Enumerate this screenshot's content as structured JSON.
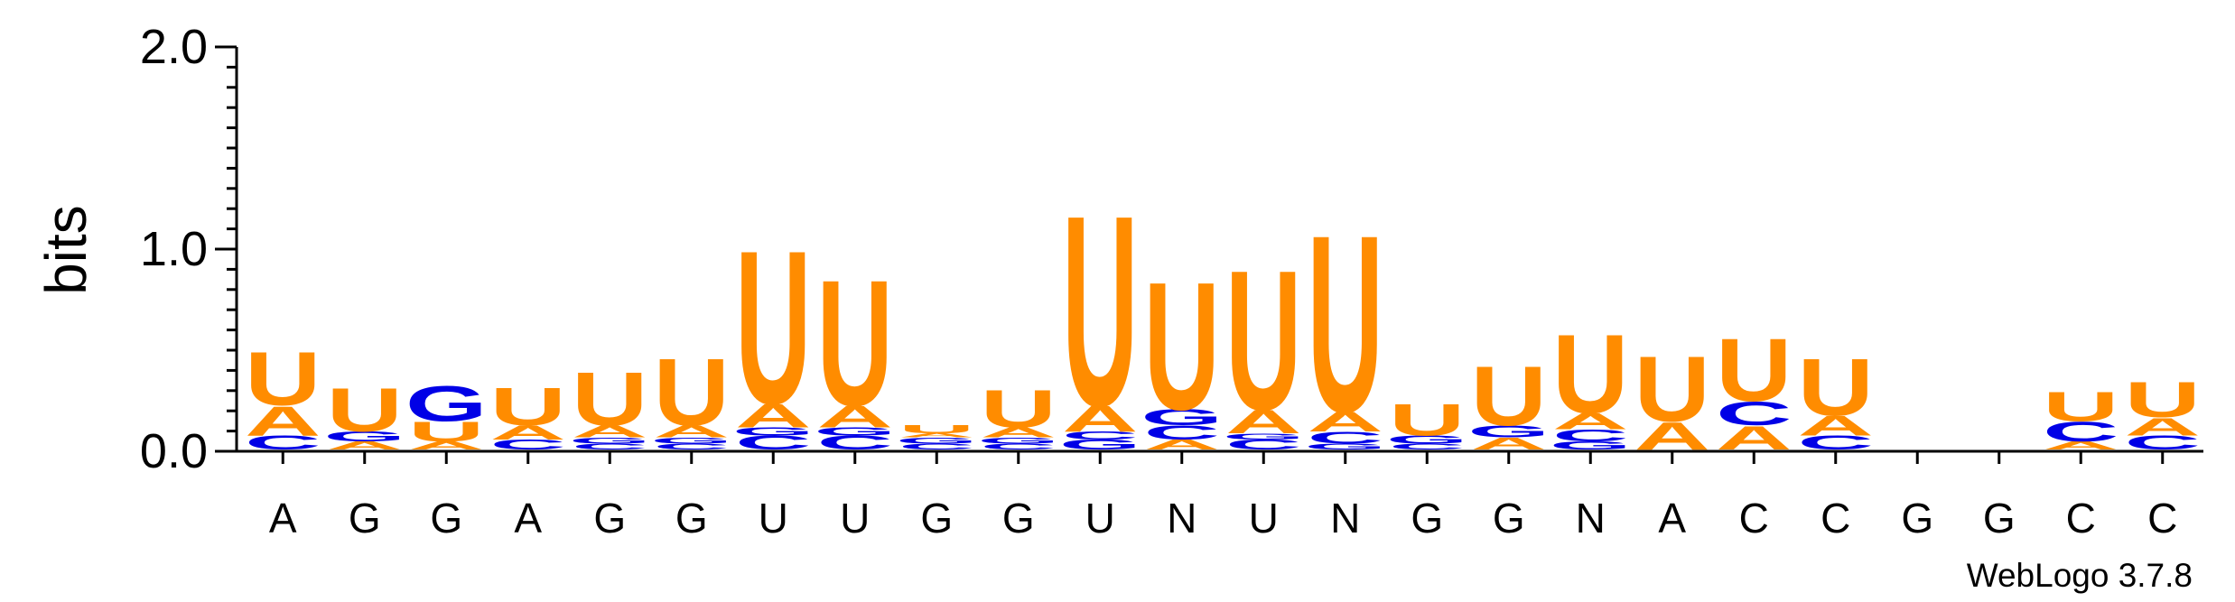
{
  "chart_data": {
    "type": "sequence-logo",
    "ylabel": "bits",
    "ylim": [
      0,
      2.0
    ],
    "yticks": [
      "0.0",
      "1.0",
      "2.0"
    ],
    "credit": "WebLogo 3.7.8",
    "colors": {
      "U": "#ff8c00",
      "A": "#ff8c00",
      "G": "#0000e6",
      "C": "#0000e6"
    },
    "positions": [
      {
        "label": "A",
        "stack": [
          [
            "C",
            0.07
          ],
          [
            "A",
            0.15
          ],
          [
            "U",
            0.27
          ]
        ]
      },
      {
        "label": "G",
        "stack": [
          [
            "A",
            0.04
          ],
          [
            "G",
            0.05
          ],
          [
            "U",
            0.22
          ]
        ]
      },
      {
        "label": "G",
        "stack": [
          [
            "A",
            0.04
          ],
          [
            "U",
            0.1
          ],
          [
            "G",
            0.18
          ]
        ]
      },
      {
        "label": "A",
        "stack": [
          [
            "C",
            0.05
          ],
          [
            "A",
            0.07
          ],
          [
            "U",
            0.19
          ]
        ]
      },
      {
        "label": "G",
        "stack": [
          [
            "C",
            0.03
          ],
          [
            "G",
            0.03
          ],
          [
            "A",
            0.06
          ],
          [
            "U",
            0.27
          ]
        ]
      },
      {
        "label": "G",
        "stack": [
          [
            "C",
            0.03
          ],
          [
            "G",
            0.03
          ],
          [
            "A",
            0.06
          ],
          [
            "U",
            0.34
          ]
        ]
      },
      {
        "label": "U",
        "stack": [
          [
            "C",
            0.07
          ],
          [
            "G",
            0.04
          ],
          [
            "A",
            0.12
          ],
          [
            "U",
            0.78
          ]
        ]
      },
      {
        "label": "U",
        "stack": [
          [
            "C",
            0.07
          ],
          [
            "G",
            0.04
          ],
          [
            "A",
            0.11
          ],
          [
            "U",
            0.64
          ]
        ]
      },
      {
        "label": "G",
        "stack": [
          [
            "C",
            0.03
          ],
          [
            "G",
            0.03
          ],
          [
            "A",
            0.02
          ],
          [
            "U",
            0.04
          ]
        ]
      },
      {
        "label": "G",
        "stack": [
          [
            "C",
            0.03
          ],
          [
            "G",
            0.03
          ],
          [
            "A",
            0.05
          ],
          [
            "U",
            0.19
          ]
        ]
      },
      {
        "label": "U",
        "stack": [
          [
            "G",
            0.05
          ],
          [
            "C",
            0.04
          ],
          [
            "A",
            0.13
          ],
          [
            "U",
            0.97
          ]
        ]
      },
      {
        "label": "N",
        "stack": [
          [
            "A",
            0.05
          ],
          [
            "C",
            0.07
          ],
          [
            "G",
            0.08
          ],
          [
            "U",
            0.65
          ]
        ]
      },
      {
        "label": "U",
        "stack": [
          [
            "C",
            0.05
          ],
          [
            "G",
            0.03
          ],
          [
            "A",
            0.12
          ],
          [
            "U",
            0.71
          ]
        ]
      },
      {
        "label": "N",
        "stack": [
          [
            "G",
            0.03
          ],
          [
            "C",
            0.06
          ],
          [
            "A",
            0.1
          ],
          [
            "U",
            0.9
          ]
        ]
      },
      {
        "label": "G",
        "stack": [
          [
            "C",
            0.03
          ],
          [
            "G",
            0.04
          ],
          [
            "U",
            0.16
          ]
        ]
      },
      {
        "label": "G",
        "stack": [
          [
            "A",
            0.06
          ],
          [
            "G",
            0.06
          ],
          [
            "U",
            0.3
          ]
        ]
      },
      {
        "label": "N",
        "stack": [
          [
            "G",
            0.04
          ],
          [
            "C",
            0.06
          ],
          [
            "A",
            0.08
          ],
          [
            "U",
            0.4
          ]
        ]
      },
      {
        "label": "A",
        "stack": [
          [
            "A",
            0.14
          ],
          [
            "U",
            0.33
          ]
        ]
      },
      {
        "label": "C",
        "stack": [
          [
            "A",
            0.12
          ],
          [
            "C",
            0.12
          ],
          [
            "U",
            0.32
          ]
        ]
      },
      {
        "label": "C",
        "stack": [
          [
            "C",
            0.07
          ],
          [
            "A",
            0.1
          ],
          [
            "U",
            0.29
          ]
        ]
      },
      {
        "label": "G",
        "stack": []
      },
      {
        "label": "G",
        "stack": []
      },
      {
        "label": "C",
        "stack": [
          [
            "A",
            0.04
          ],
          [
            "C",
            0.1
          ],
          [
            "U",
            0.15
          ]
        ]
      },
      {
        "label": "C",
        "stack": [
          [
            "C",
            0.07
          ],
          [
            "A",
            0.09
          ],
          [
            "U",
            0.18
          ]
        ]
      }
    ]
  }
}
